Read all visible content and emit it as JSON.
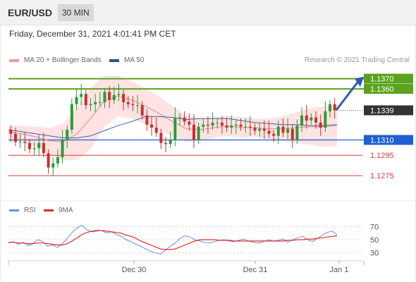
{
  "header": {
    "symbol": "EUR/USD",
    "timeframe": "30 MIN"
  },
  "datetime": "Friday, December 31, 2021 4:01:41 PM CET",
  "legend": {
    "ma20_label": "MA 20 + Bollinger Bands",
    "ma50_label": "MA 50",
    "copyright": "Research © 2021 Trading Central",
    "rsi_label": "RSI",
    "rsi_ma_label": "9MA"
  },
  "colors": {
    "resistance": "#5ba31f",
    "support": "#1f5fd1",
    "target": "#d73a3a",
    "ma50": "#3b5fad",
    "bollinger": "#ffd9d9",
    "bull": "#2c9a3a",
    "bear": "#cc2e2e",
    "rsi": "#6b8fd8",
    "rsi_ma": "#e12b2b",
    "price_tag": "#333333",
    "arrow": "#2a5db0"
  },
  "chart_data": [
    {
      "type": "candlestick",
      "title": "EUR/USD 30 MIN",
      "x_ticks": [
        "Dec 30",
        "Dec 31",
        "Jan 1"
      ],
      "ylim": [
        1.1262,
        1.1378
      ],
      "current_price": 1.1339,
      "levels": [
        {
          "label": "1.1370",
          "value": 1.137,
          "kind": "resistance"
        },
        {
          "label": "1.1360",
          "value": 1.136,
          "kind": "resistance"
        },
        {
          "label": "1.1339",
          "value": 1.1339,
          "kind": "current"
        },
        {
          "label": "1.1310",
          "value": 1.131,
          "kind": "support"
        },
        {
          "label": "1.1295",
          "value": 1.1295,
          "kind": "target"
        },
        {
          "label": "1.1275",
          "value": 1.1275,
          "kind": "target"
        }
      ],
      "series": [
        {
          "name": "MA 20 + Bollinger Bands",
          "values": [
            1.1318,
            1.1316,
            1.1313,
            1.1309,
            1.1308,
            1.1316,
            1.1331,
            1.1348,
            1.1353,
            1.1349,
            1.1343,
            1.1336,
            1.1328,
            1.1321,
            1.132,
            1.1322,
            1.1324,
            1.1322,
            1.1322,
            1.1321,
            1.1321,
            1.1322,
            1.1323,
            1.1323,
            1.1324
          ]
        },
        {
          "name": "MA 50",
          "values": [
            1.132,
            1.1318,
            1.1316,
            1.1314,
            1.1312,
            1.1312,
            1.1314,
            1.1319,
            1.1324,
            1.1328,
            1.1333,
            1.1333,
            1.1332,
            1.133,
            1.1331,
            1.1331,
            1.1331,
            1.1329,
            1.1327,
            1.1326,
            1.1325,
            1.1325,
            1.1324,
            1.1324,
            1.1325
          ]
        }
      ],
      "closes": [
        1.1316,
        1.1308,
        1.1308,
        1.1307,
        1.1301,
        1.1302,
        1.1307,
        1.1297,
        1.1283,
        1.1287,
        1.1293,
        1.131,
        1.132,
        1.1345,
        1.1352,
        1.1355,
        1.1344,
        1.1345,
        1.1347,
        1.1347,
        1.1357,
        1.1349,
        1.1354,
        1.1355,
        1.1347,
        1.1345,
        1.1344,
        1.1344,
        1.1334,
        1.1325,
        1.1322,
        1.1317,
        1.1307,
        1.1306,
        1.131,
        1.1332,
        1.1332,
        1.1328,
        1.1325,
        1.131,
        1.1323,
        1.1325,
        1.1324,
        1.1327,
        1.1327,
        1.1324,
        1.1322,
        1.1324,
        1.1325,
        1.1323,
        1.1323,
        1.1322,
        1.1319,
        1.1321,
        1.1319,
        1.1316,
        1.1314,
        1.1323,
        1.1317,
        1.1321,
        1.131,
        1.1324,
        1.1334,
        1.1329,
        1.1332,
        1.1327,
        1.1322,
        1.1338,
        1.1345,
        1.1339
      ]
    },
    {
      "type": "line",
      "title": "RSI",
      "ylim": [
        20,
        80
      ],
      "y_ticks": [
        30,
        50,
        70
      ],
      "series": [
        {
          "name": "RSI",
          "values": [
            45,
            47,
            43,
            46,
            41,
            44,
            50,
            47,
            40,
            42,
            38,
            44,
            52,
            61,
            68,
            72,
            65,
            62,
            63,
            64,
            60,
            62,
            58,
            55,
            50,
            47,
            43,
            40,
            36,
            32,
            30,
            28,
            34,
            40,
            45,
            52,
            56,
            54,
            50,
            48,
            46,
            45,
            47,
            49,
            50,
            48,
            47,
            49,
            51,
            48,
            46,
            45,
            47,
            50,
            48,
            49,
            51,
            46,
            50,
            53,
            55,
            50,
            47,
            52,
            57,
            61,
            63,
            58
          ]
        },
        {
          "name": "9MA",
          "values": [
            46,
            46,
            45,
            45,
            44,
            44,
            45,
            45,
            44,
            43,
            42,
            42,
            44,
            48,
            53,
            58,
            61,
            63,
            64,
            64,
            63,
            62,
            61,
            60,
            57,
            55,
            52,
            48,
            45,
            42,
            39,
            36,
            35,
            35,
            36,
            39,
            42,
            45,
            48,
            50,
            50,
            50,
            50,
            49,
            49,
            49,
            48,
            48,
            48,
            48,
            48,
            48,
            48,
            48,
            48,
            48,
            48,
            49,
            49,
            50,
            50,
            51,
            51,
            52,
            53,
            54,
            55,
            56
          ]
        }
      ]
    }
  ]
}
